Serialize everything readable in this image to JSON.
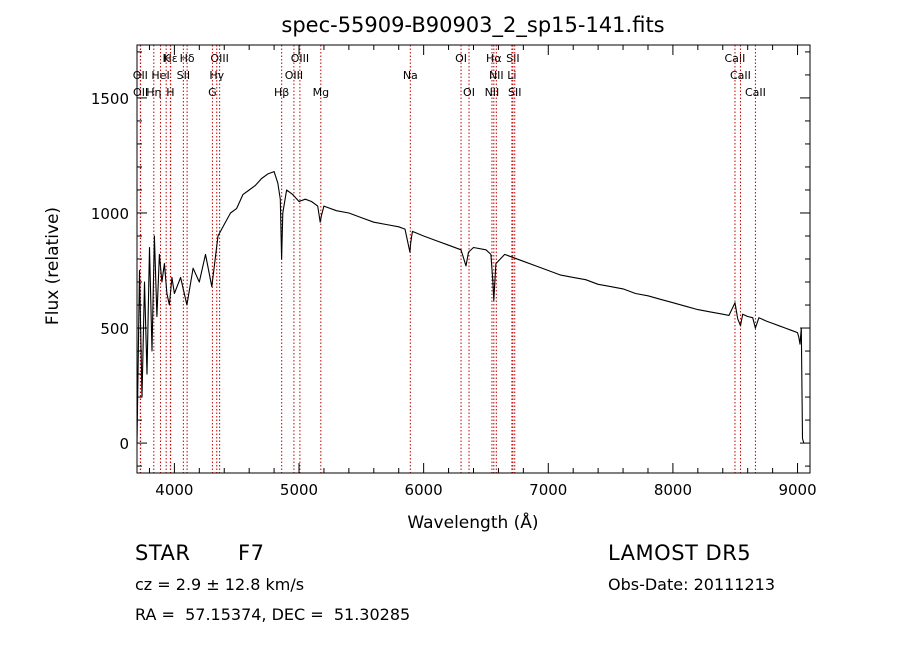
{
  "chart_data": {
    "type": "line",
    "title": "spec-55909-B90903_2_sp15-141.fits",
    "xlabel": "Wavelength (Å)",
    "ylabel": "Flux (relative)",
    "xlim": [
      3700,
      9100
    ],
    "ylim": [
      -130,
      1730
    ],
    "x_ticks": [
      4000,
      5000,
      6000,
      7000,
      8000,
      9000
    ],
    "y_ticks": [
      0,
      500,
      1000,
      1500
    ],
    "grid": false,
    "series": [
      {
        "color": "#000000",
        "x": [
          3700,
          3720,
          3740,
          3760,
          3780,
          3800,
          3820,
          3840,
          3860,
          3880,
          3900,
          3920,
          3940,
          3960,
          3980,
          4000,
          4050,
          4100,
          4150,
          4200,
          4250,
          4300,
          4350,
          4400,
          4450,
          4500,
          4550,
          4600,
          4650,
          4700,
          4750,
          4800,
          4830,
          4850,
          4860,
          4870,
          4900,
          4950,
          5000,
          5050,
          5100,
          5150,
          5170,
          5180,
          5200,
          5300,
          5400,
          5500,
          5600,
          5700,
          5800,
          5850,
          5890,
          5896,
          5910,
          6000,
          6100,
          6200,
          6300,
          6340,
          6360,
          6400,
          6500,
          6540,
          6556,
          6563,
          6580,
          6650,
          6700,
          6800,
          6900,
          7000,
          7100,
          7200,
          7300,
          7400,
          7500,
          7600,
          7700,
          7800,
          7900,
          8000,
          8100,
          8200,
          8300,
          8400,
          8450,
          8498,
          8520,
          8542,
          8560,
          8600,
          8640,
          8662,
          8690,
          8750,
          8800,
          8850,
          8900,
          8950,
          9000,
          9010,
          9020,
          9030,
          9040,
          9050
        ],
        "y": [
          0,
          750,
          200,
          700,
          300,
          850,
          400,
          900,
          550,
          820,
          700,
          780,
          650,
          600,
          720,
          650,
          720,
          600,
          760,
          700,
          820,
          680,
          900,
          950,
          1000,
          1020,
          1080,
          1100,
          1120,
          1150,
          1170,
          1180,
          1130,
          1060,
          800,
          1000,
          1100,
          1080,
          1050,
          1060,
          1050,
          1030,
          960,
          990,
          1030,
          1010,
          1000,
          980,
          960,
          950,
          940,
          930,
          830,
          870,
          920,
          900,
          880,
          860,
          840,
          770,
          830,
          850,
          840,
          820,
          700,
          620,
          780,
          820,
          810,
          790,
          770,
          750,
          730,
          720,
          710,
          690,
          680,
          670,
          650,
          640,
          625,
          610,
          595,
          580,
          570,
          560,
          555,
          610,
          540,
          510,
          560,
          550,
          545,
          500,
          545,
          530,
          520,
          510,
          500,
          490,
          480,
          460,
          430,
          500,
          20,
          0
        ]
      }
    ],
    "lines": [
      {
        "name": "Hε",
        "x": 3970,
        "row": 0
      },
      {
        "name": "K",
        "x": 3934,
        "row": 0
      },
      {
        "name": "Hδ",
        "x": 4102,
        "row": 0
      },
      {
        "name": "OIII",
        "x": 4363,
        "row": 0
      },
      {
        "name": "OIII",
        "x": 5007,
        "row": 0
      },
      {
        "name": "OI",
        "x": 6300,
        "row": 0
      },
      {
        "name": "Hα",
        "x": 6563,
        "row": 0
      },
      {
        "name": "SII",
        "x": 6716,
        "row": 0
      },
      {
        "name": "CaII",
        "x": 8498,
        "row": 0
      },
      {
        "name": "OII",
        "x": 3727,
        "row": 1
      },
      {
        "name": "HeI",
        "x": 3889,
        "row": 1
      },
      {
        "name": "SII",
        "x": 4072,
        "row": 1
      },
      {
        "name": "Hγ",
        "x": 4340,
        "row": 1
      },
      {
        "name": "OIII",
        "x": 4959,
        "row": 1
      },
      {
        "name": "Na",
        "x": 5893,
        "row": 1
      },
      {
        "name": "NII",
        "x": 6583,
        "row": 1
      },
      {
        "name": "Li",
        "x": 6708,
        "row": 1
      },
      {
        "name": "CaII",
        "x": 8542,
        "row": 1
      },
      {
        "name": "OII",
        "x": 3729,
        "row": 2
      },
      {
        "name": "Hη",
        "x": 3835,
        "row": 2
      },
      {
        "name": "H",
        "x": 3968,
        "row": 2
      },
      {
        "name": "G",
        "x": 4305,
        "row": 2
      },
      {
        "name": "Hβ",
        "x": 4861,
        "row": 2
      },
      {
        "name": "Mg",
        "x": 5175,
        "row": 2
      },
      {
        "name": "OI",
        "x": 6364,
        "row": 2
      },
      {
        "name": "NII",
        "x": 6548,
        "row": 2
      },
      {
        "name": "SII",
        "x": 6731,
        "row": 2
      },
      {
        "name": "CaII",
        "x": 8662,
        "row": 2
      }
    ]
  },
  "info": {
    "object_class": "STAR",
    "subclass": "F7",
    "survey": "LAMOST DR5",
    "cz": "cz = 2.9 ± 12.8 km/s",
    "obs_date": "Obs-Date: 20111213",
    "coords": "RA =  57.15374, DEC =  51.30285"
  }
}
